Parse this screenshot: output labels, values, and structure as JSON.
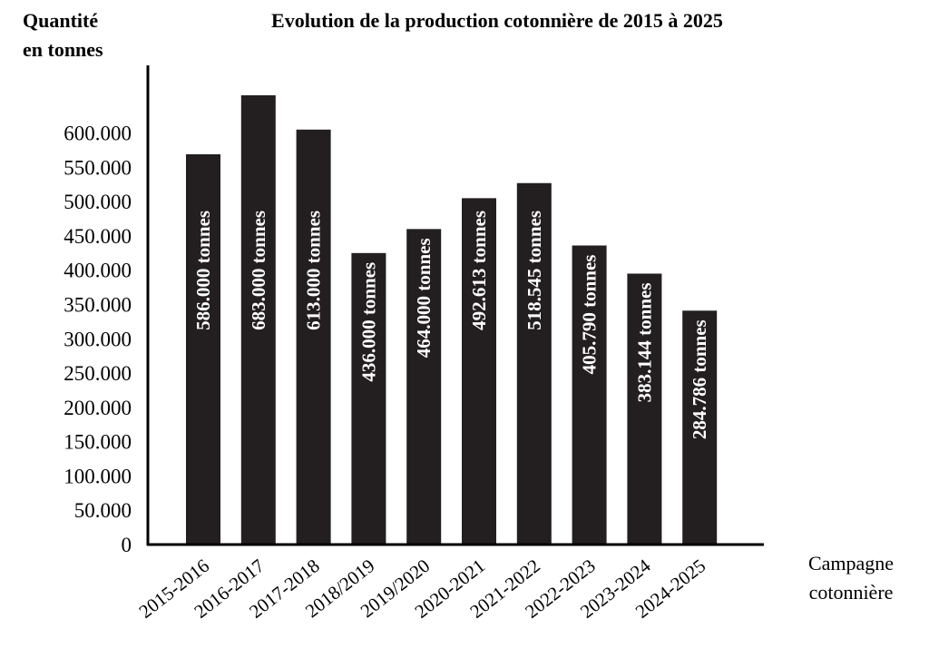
{
  "chart_data": {
    "type": "bar",
    "title": "Evolution de la production cotonnière de 2015 à 2025",
    "ylabel_lines": [
      "Quantité",
      "en tonnes"
    ],
    "xlabel_lines": [
      "Campagne",
      "cotonnière"
    ],
    "categories": [
      "2015-2016",
      "2016-2017",
      "2017-2018",
      "2018/2019",
      "2019/2020",
      "2020-2021",
      "2021-2022",
      "2022-2023",
      "2023-2024",
      "2024-2025"
    ],
    "values": [
      586000,
      683000,
      613000,
      436000,
      464000,
      492613,
      518545,
      405790,
      383144,
      284786
    ],
    "bar_heights_as_drawn": [
      569000,
      655000,
      605000,
      425000,
      460000,
      505000,
      527000,
      436000,
      395000,
      341000
    ],
    "data_labels": [
      "586.000 tonnes",
      "683.000 tonnes",
      "613.000 tonnes",
      "436.000 tonnes",
      "464.000 tonnes",
      "492.613 tonnes",
      "518.545 tonnes",
      "405.790 tonnes",
      "383.144 tonnes",
      "284.786 tonnes"
    ],
    "yticks": [
      0,
      50000,
      100000,
      150000,
      200000,
      250000,
      300000,
      350000,
      400000,
      450000,
      500000,
      550000,
      600000
    ],
    "ytick_labels": [
      "0",
      "50.000",
      "100.000",
      "150.000",
      "200.000",
      "250.000",
      "300.000",
      "350.000",
      "400.000",
      "450.000",
      "500.000",
      "550.000",
      "600.000"
    ],
    "ylim": [
      0,
      690000
    ],
    "grid": false,
    "legend": "none",
    "colors": {
      "bar": "#231f20",
      "axis": "#000000",
      "label": "#ffffff"
    }
  }
}
